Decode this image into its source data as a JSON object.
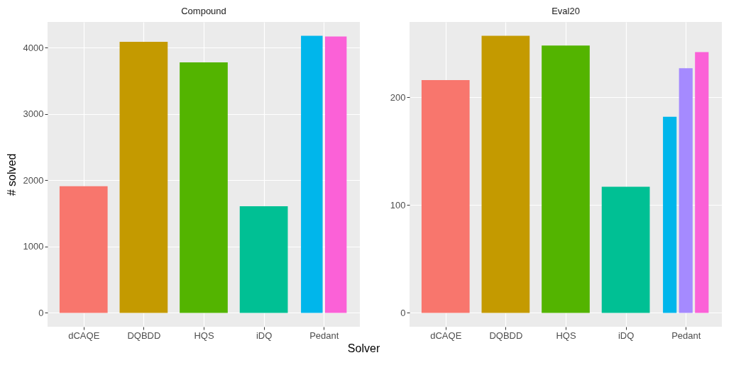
{
  "chart_data": [
    {
      "type": "bar",
      "title": "Compound",
      "xlabel": "Solver",
      "ylabel": "# solved",
      "categories": [
        "dCAQE",
        "DQBDD",
        "HQS",
        "iDQ",
        "Pedant"
      ],
      "ylim": [
        -209,
        4389
      ],
      "yticks": [
        0,
        1000,
        2000,
        3000,
        4000
      ],
      "grid": true,
      "series": [
        {
          "color": "#f8766d",
          "values": [
            1910,
            null,
            null,
            null,
            null
          ]
        },
        {
          "color": "#c49a00",
          "values": [
            null,
            4090,
            null,
            null,
            null
          ]
        },
        {
          "color": "#53b400",
          "values": [
            null,
            null,
            3780,
            null,
            null
          ]
        },
        {
          "color": "#00c094",
          "values": [
            null,
            null,
            null,
            1610,
            null
          ]
        },
        {
          "color": "#00b6eb",
          "values": [
            null,
            null,
            null,
            null,
            4180
          ]
        },
        {
          "color": "#fb61d7",
          "values": [
            null,
            null,
            null,
            null,
            4170
          ]
        }
      ]
    },
    {
      "type": "bar",
      "title": "Eval20",
      "categories": [
        "dCAQE",
        "DQBDD",
        "HQS",
        "iDQ",
        "Pedant"
      ],
      "ylim": [
        -12.9,
        269.9
      ],
      "yticks": [
        0,
        100,
        200
      ],
      "grid": true,
      "series": [
        {
          "color": "#f8766d",
          "values": [
            216,
            null,
            null,
            null,
            null
          ]
        },
        {
          "color": "#c49a00",
          "values": [
            null,
            257,
            null,
            null,
            null
          ]
        },
        {
          "color": "#53b400",
          "values": [
            null,
            null,
            248,
            null,
            null
          ]
        },
        {
          "color": "#00c094",
          "values": [
            null,
            null,
            null,
            117,
            null
          ]
        },
        {
          "color": "#00b6eb",
          "values": [
            null,
            null,
            null,
            null,
            182
          ]
        },
        {
          "color": "#a58aff",
          "values": [
            null,
            null,
            null,
            null,
            227
          ]
        },
        {
          "color": "#fb61d7",
          "values": [
            null,
            null,
            null,
            null,
            242
          ]
        }
      ]
    }
  ]
}
